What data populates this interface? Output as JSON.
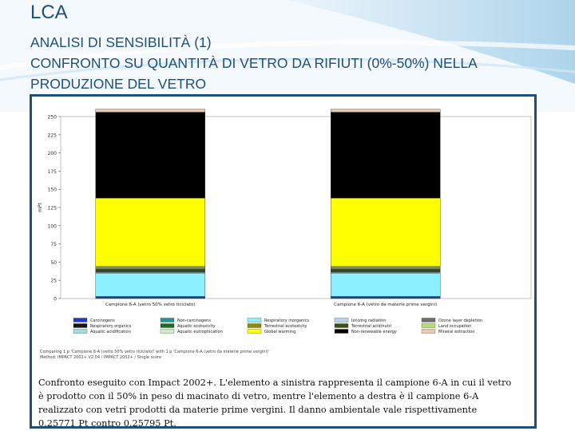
{
  "slide": {
    "title": "LCA",
    "subtitle_lines": [
      "ANALISI DI SENSIBILITÀ (1)",
      "CONFRONTO SU QUANTITÀ DI VETRO DA RIFIUTI (0%-50%) NELLA",
      "PRODUZIONE DEL VETRO"
    ],
    "caption_lines": [
      "Confronto eseguito con Impact 2002+. L'elemento a sinistra rappresenta il campione 6-A in cui il vetro",
      "è prodotto con il  50% in peso di macinato di vetro, mentre l'elemento a destra è il campione 6-A",
      "realizzato  con vetri prodotti da materie prime vergini. Il danno ambientale vale rispettivamente",
      "0,25771 Pt contro 0,25795 Pt."
    ]
  },
  "chart_data": {
    "type": "bar",
    "stacked": true,
    "ylabel": "mPt",
    "ylim": [
      0,
      250
    ],
    "y_ticks": [
      "0",
      "25",
      "50",
      "75",
      "100",
      "125",
      "150",
      "175",
      "200",
      "225",
      "250"
    ],
    "categories": [
      "Campione 6-A (vetro 50% vetro riciclato)",
      "Campione 6-A (vetro da materie prime vergini)"
    ],
    "series": [
      {
        "name": "Carcinogens",
        "color": "#1e3cc8",
        "values": [
          2,
          2
        ]
      },
      {
        "name": "Non-carcinogens",
        "color": "#1e9696",
        "values": [
          1,
          1
        ]
      },
      {
        "name": "Respiratory inorganics",
        "color": "#8cf0ff",
        "values": [
          32,
          32
        ]
      },
      {
        "name": "Ionizing radiation",
        "color": "#b8d2e8",
        "values": [
          1,
          1
        ]
      },
      {
        "name": "Ozone layer depletion",
        "color": "#6e6e6e",
        "values": [
          1,
          1
        ]
      },
      {
        "name": "Respiratory organics",
        "color": "#141414",
        "values": [
          1,
          1
        ]
      },
      {
        "name": "Aquatic ecotoxicity",
        "color": "#1a6e1a",
        "values": [
          1,
          1
        ]
      },
      {
        "name": "Terrestrial ecotoxicity",
        "color": "#8c8c00",
        "values": [
          1,
          1
        ]
      },
      {
        "name": "Terrestrial acid/nutri",
        "color": "#3c5014",
        "values": [
          1,
          1
        ]
      },
      {
        "name": "Land occupation",
        "color": "#b4dc6e",
        "values": [
          1,
          1
        ]
      },
      {
        "name": "Aquatic acidification",
        "color": "#a0dcdc",
        "values": [
          1,
          1
        ]
      },
      {
        "name": "Aquatic eutrophication",
        "color": "#c8f0c8",
        "values": [
          1,
          1
        ]
      },
      {
        "name": "Global warming",
        "color": "#ffff00",
        "values": [
          94,
          94
        ]
      },
      {
        "name": "Non-renewable energy",
        "color": "#000000",
        "values": [
          118,
          118
        ]
      },
      {
        "name": "Mineral extraction",
        "color": "#f0c8aa",
        "values": [
          4,
          4
        ]
      }
    ],
    "legend_order": [
      "Carcinogens",
      "Non-carcinogens",
      "Respiratory inorganics",
      "Ionizing radiation",
      "Ozone layer depletion",
      "Respiratory organics",
      "Aquatic ecotoxicity",
      "Terrestrial ecotoxicity",
      "Terrestrial acid/nutri",
      "Land occupation",
      "Aquatic acidification",
      "Aquatic eutrophication",
      "Global warming",
      "Non-renewable energy",
      "Mineral extraction"
    ],
    "legend_placement": "bottom",
    "footer_lines": [
      "Comparing 1 p 'Campione 6-A (vetro 50% vetro riciclato)' with 1 p 'Campione 6-A (vetro da materie prime vergini)'",
      "Method: IMPACT 2002+ V2.04 / IMPACT 2002+ / Single score"
    ]
  }
}
